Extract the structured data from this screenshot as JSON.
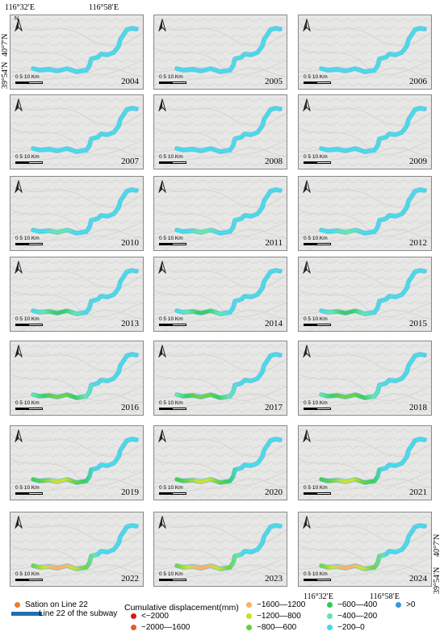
{
  "coords": {
    "top_lon_1": "116°32′E",
    "top_lon_2": "116°58′E",
    "left_lat_1": "40°7′N",
    "left_lat_2": "39°54′N",
    "right_lat_1": "40°7′N",
    "right_lat_2": "39°54′N",
    "bottom_lon_1": "116°32′E",
    "bottom_lon_2": "116°58′E"
  },
  "north_label": "N",
  "scale_label": "0   5   10 Km",
  "panels": [
    {
      "year": "2004",
      "level": 0
    },
    {
      "year": "2005",
      "level": 0
    },
    {
      "year": "2006",
      "level": 0
    },
    {
      "year": "2007",
      "level": 1
    },
    {
      "year": "2008",
      "level": 1
    },
    {
      "year": "2009",
      "level": 1
    },
    {
      "year": "2010",
      "level": 2
    },
    {
      "year": "2011",
      "level": 2
    },
    {
      "year": "2012",
      "level": 2
    },
    {
      "year": "2013",
      "level": 3
    },
    {
      "year": "2014",
      "level": 3
    },
    {
      "year": "2015",
      "level": 3
    },
    {
      "year": "2016",
      "level": 4
    },
    {
      "year": "2017",
      "level": 4
    },
    {
      "year": "2018",
      "level": 4
    },
    {
      "year": "2019",
      "level": 5
    },
    {
      "year": "2020",
      "level": 5
    },
    {
      "year": "2021",
      "level": 5
    },
    {
      "year": "2022",
      "level": 6
    },
    {
      "year": "2023",
      "level": 6
    },
    {
      "year": "2024",
      "level": 6
    }
  ],
  "legend": {
    "station": "Sation on Line 22",
    "line": "Line 22 of the subway",
    "title": "Cumulative displacement(mm)",
    "classes": [
      {
        "label": "<−2000",
        "color": "#d7191c"
      },
      {
        "label": "−2000—1600",
        "color": "#e8592a"
      },
      {
        "label": "−1600—1200",
        "color": "#fdae61"
      },
      {
        "label": "−1200—800",
        "color": "#c7e02f"
      },
      {
        "label": "−800—600",
        "color": "#66d13a"
      },
      {
        "label": "−600—400",
        "color": "#2ecc55"
      },
      {
        "label": "−400—200",
        "color": "#5fe6a8"
      },
      {
        "label": "−200–0",
        "color": "#41d8e8"
      },
      {
        "label": ">0",
        "color": "#3399dd"
      }
    ],
    "station_color": "#f07c28",
    "line_color": "#1f6fb5"
  }
}
